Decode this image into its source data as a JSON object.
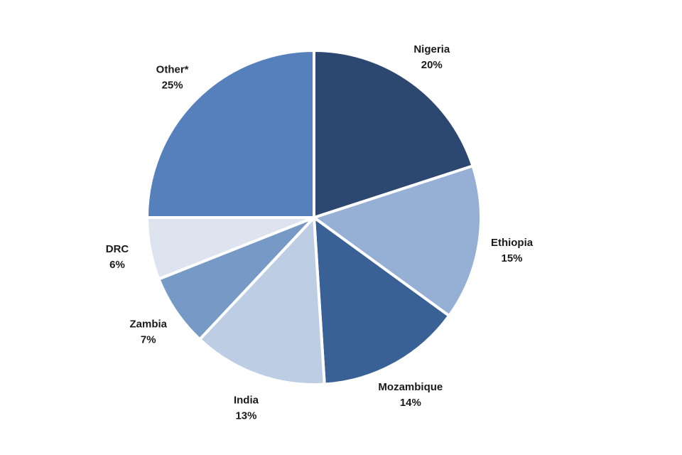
{
  "chart_data": {
    "type": "pie",
    "title": "",
    "start": "top",
    "direction": "clockwise",
    "slices": [
      {
        "label": "Nigeria",
        "value": 20,
        "display": "20%",
        "color": "#2C4770"
      },
      {
        "label": "Ethiopia",
        "value": 15,
        "display": "15%",
        "color": "#95B0D4"
      },
      {
        "label": "Mozambique",
        "value": 14,
        "display": "14%",
        "color": "#3A6195"
      },
      {
        "label": "India",
        "value": 13,
        "display": "13%",
        "color": "#BCCDE4"
      },
      {
        "label": "Zambia",
        "value": 7,
        "display": "7%",
        "color": "#7699C6"
      },
      {
        "label": "DRC",
        "value": 6,
        "display": "6%",
        "color": "#DDE4EF"
      },
      {
        "label": "Other*",
        "value": 25,
        "display": "25%",
        "color": "#5580BB"
      }
    ]
  }
}
